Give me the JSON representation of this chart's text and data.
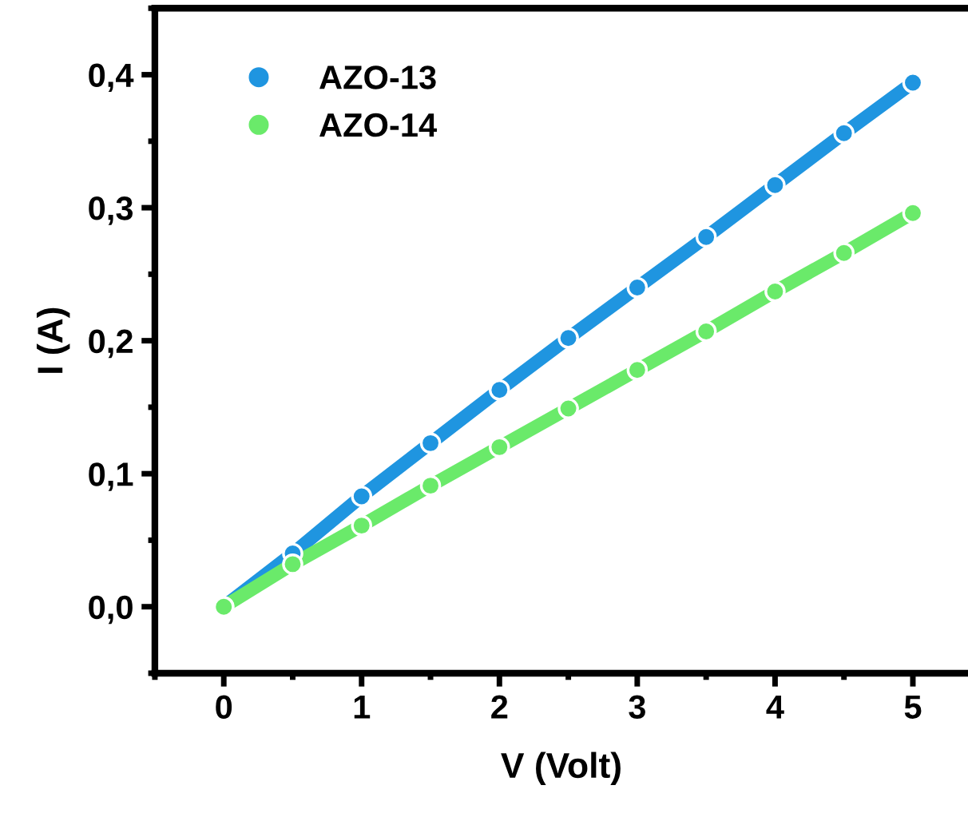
{
  "chart_data": {
    "type": "line",
    "xlabel": "V (Volt)",
    "ylabel": "I (A)",
    "x": [
      0,
      0.5,
      1,
      1.5,
      2,
      2.5,
      3,
      3.5,
      4,
      4.5,
      5
    ],
    "series": [
      {
        "name": "AZO-13",
        "color": "#1f95e0",
        "values": [
          0,
          0.04,
          0.083,
          0.123,
          0.163,
          0.202,
          0.24,
          0.278,
          0.317,
          0.356,
          0.394
        ]
      },
      {
        "name": "AZO-14",
        "color": "#6aea6a",
        "values": [
          0,
          0.032,
          0.061,
          0.091,
          0.12,
          0.149,
          0.178,
          0.207,
          0.237,
          0.266,
          0.296
        ]
      }
    ],
    "xlim": [
      -0.5,
      5.4
    ],
    "ylim": [
      -0.05,
      0.45
    ],
    "xticks": [
      0,
      1,
      2,
      3,
      4,
      5
    ],
    "yticks": [
      {
        "value": 0,
        "label": "0,0"
      },
      {
        "value": 0.1,
        "label": "0,1"
      },
      {
        "value": 0.2,
        "label": "0,2"
      },
      {
        "value": 0.3,
        "label": "0,3"
      },
      {
        "value": 0.4,
        "label": "0,4"
      }
    ],
    "grid": false,
    "legend": "top left",
    "marker": "circle"
  }
}
